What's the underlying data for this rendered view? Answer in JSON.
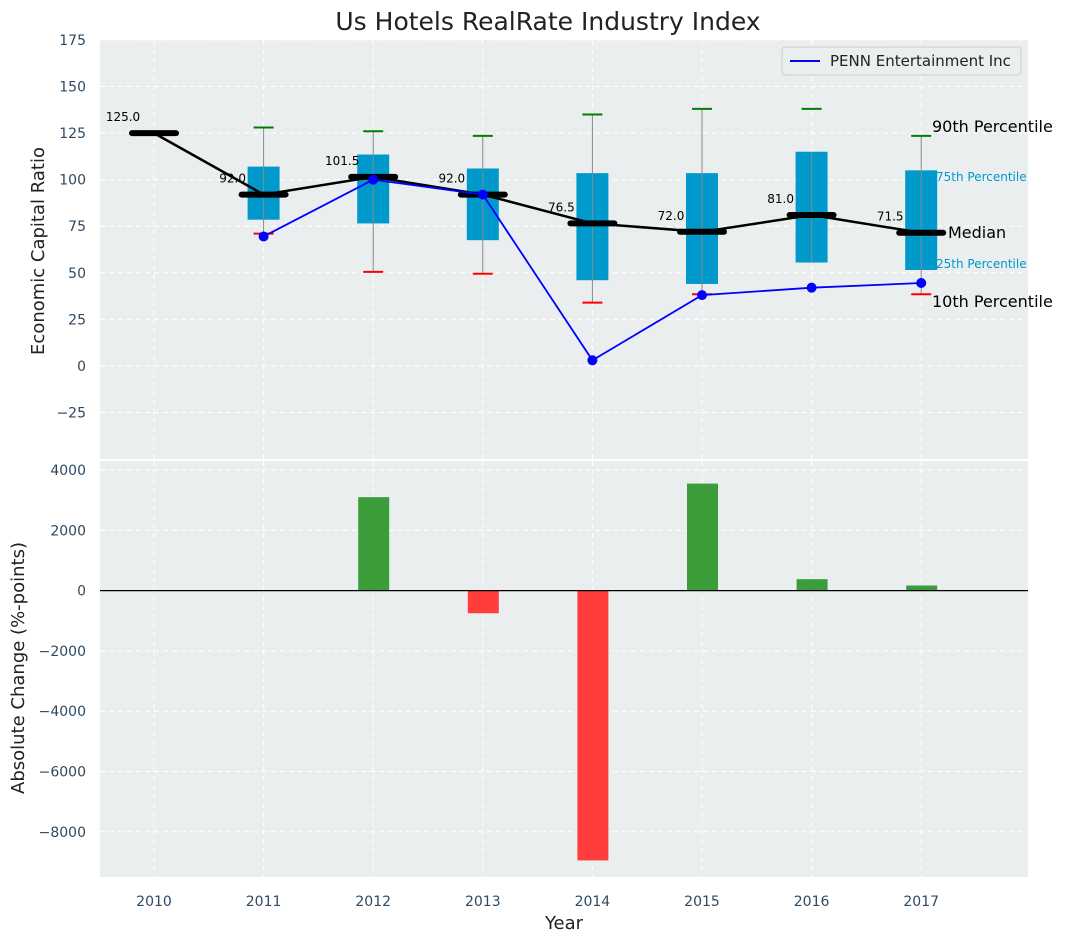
{
  "chart_data": [
    {
      "type": "box",
      "title": "Us Hotels RealRate Industry Index",
      "ylabel": "Economic Capital Ratio",
      "ylim": [
        -50,
        175
      ],
      "yticks": [
        -25,
        0,
        25,
        50,
        75,
        100,
        125,
        150,
        175
      ],
      "categories": [
        "2010",
        "2011",
        "2012",
        "2013",
        "2014",
        "2015",
        "2016",
        "2017"
      ],
      "percentiles": {
        "p10": [
          null,
          71,
          50.5,
          49.5,
          34,
          38.5,
          null,
          38.5
        ],
        "p25": [
          null,
          78.5,
          76.5,
          67.5,
          46,
          44,
          55.5,
          51.5
        ],
        "median": [
          125.0,
          92.0,
          101.5,
          92.0,
          76.5,
          72.0,
          81.0,
          71.5
        ],
        "p75": [
          null,
          107,
          113.5,
          106,
          103.5,
          103.5,
          115,
          105
        ],
        "p90": [
          null,
          128,
          126,
          123.5,
          135,
          138,
          138,
          123.5
        ]
      },
      "median_labels": [
        "125.0",
        "92.0",
        "101.5",
        "92.0",
        "76.5",
        "72.0",
        "81.0",
        "71.5"
      ],
      "series": [
        {
          "name": "PENN Entertainment Inc",
          "color": "#0000ff",
          "values": [
            null,
            69.5,
            100,
            92,
            3,
            38,
            42,
            44.5
          ]
        }
      ],
      "annotations": {
        "p90": "90th Percentile",
        "p75": "75th Percentile",
        "median": "Median",
        "p25": "25th Percentile",
        "p10": "10th Percentile"
      },
      "legend": "top-right",
      "grid": true
    },
    {
      "type": "bar",
      "xlabel": "Year",
      "ylabel": "Absolute Change (%-points)",
      "ylim": [
        -9500,
        4300
      ],
      "yticks": [
        -8000,
        -6000,
        -4000,
        -2000,
        0,
        2000,
        4000
      ],
      "categories": [
        "2010",
        "2011",
        "2012",
        "2013",
        "2014",
        "2015",
        "2016",
        "2017"
      ],
      "values": [
        null,
        null,
        3100,
        -750,
        -8950,
        3550,
        380,
        170
      ],
      "grid": true
    }
  ],
  "colors": {
    "panel_bg": "#eaeeef",
    "grid": "#ffffff",
    "box_fill": "#0099cc",
    "median_line": "#000000",
    "whisker": "#888888",
    "p90_cap": "#008000",
    "p10_cap": "#ff0000",
    "company": "#0000ff",
    "bar_pos": "#3a9d3a",
    "bar_neg": "#ff3d3d",
    "tick_text": "#2e4a62"
  }
}
